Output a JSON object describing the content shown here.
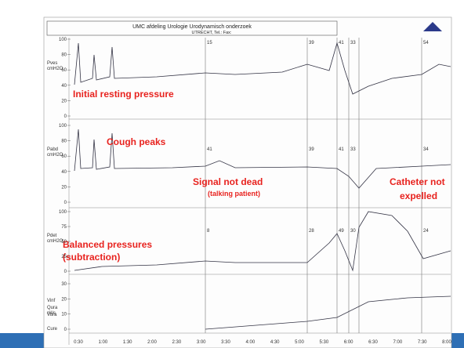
{
  "header": {
    "title": "UMC afdeling Urologie Urodynamisch onderzoek",
    "subtitle": "UTRECHT, Tel.: Fax:"
  },
  "channels": [
    {
      "name": "Pves",
      "unit": "cmH2O",
      "ticks": [
        "100",
        "80",
        "60",
        "40",
        "20",
        "0"
      ]
    },
    {
      "name": "Pabd",
      "unit": "cmH2O",
      "ticks": [
        "100",
        "80",
        "60",
        "40",
        "20",
        "0"
      ]
    },
    {
      "name": "Pdet",
      "unit": "cmH2O",
      "ticks": [
        "100",
        "75",
        "50",
        "25",
        "0"
      ]
    },
    {
      "name": "Qura",
      "unit": "ml/s",
      "ticks": [
        "30",
        "20",
        "10",
        "0"
      ]
    }
  ],
  "lower_labels": [
    "Vinf",
    "Vura",
    "Cure"
  ],
  "markers": {
    "pves": [
      "15",
      "39",
      "41",
      "33",
      "54"
    ],
    "pabd": [
      "41",
      "39",
      "41",
      "33",
      "34"
    ],
    "pdet": [
      "8",
      "28",
      "49",
      "30",
      "24"
    ]
  },
  "time_labels": [
    "0:30",
    "1:00",
    "1:30",
    "2:00",
    "2:30",
    "3:00",
    "3:30",
    "4:00",
    "4:30",
    "5:00",
    "5:30",
    "6:00",
    "6:30",
    "7:00",
    "7:30",
    "8:00"
  ],
  "annotations": {
    "resting": "Initial resting pressure",
    "cough": "Cough peaks",
    "signal": "Signal not dead",
    "talking": "(talking patient)",
    "catheter_1": "Catheter not",
    "catheter_2": "expelled",
    "balanced_1": "Balanced pressures",
    "balanced_2": "(subtraction)"
  }
}
